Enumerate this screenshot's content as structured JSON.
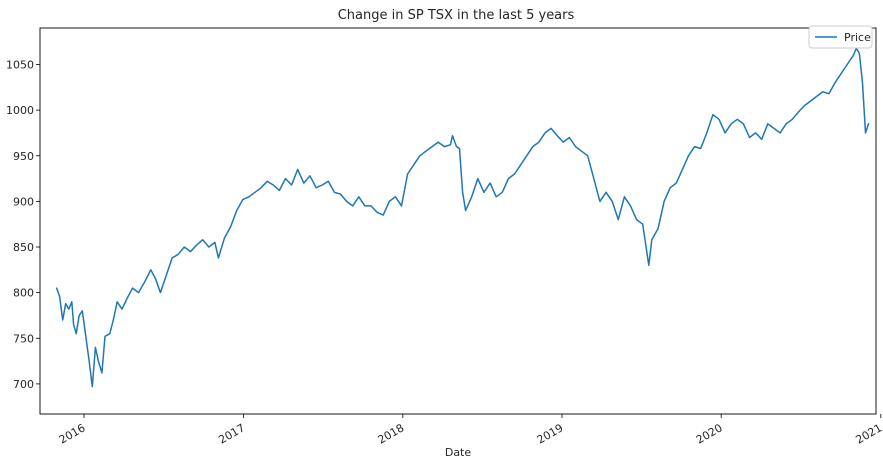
{
  "chart_data": {
    "type": "line",
    "title": "Change in SP TSX in the last 5 years",
    "xlabel": "Date",
    "ylabel": "",
    "ylim": [
      667,
      1090
    ],
    "xlim": [
      "2015-09-22",
      "2020-12-21"
    ],
    "grid": false,
    "legend_position": "top-right",
    "yticks": [
      700,
      750,
      800,
      850,
      900,
      950,
      1000,
      1050
    ],
    "xticks": [
      {
        "date": "2016-01-01",
        "label": "2016"
      },
      {
        "date": "2017-01-01",
        "label": "2017"
      },
      {
        "date": "2018-01-01",
        "label": "2018"
      },
      {
        "date": "2019-01-01",
        "label": "2019"
      },
      {
        "date": "2020-01-01",
        "label": "2020"
      },
      {
        "date": "2021-01-01",
        "label": "2021"
      }
    ],
    "series": [
      {
        "name": "Price",
        "color": "#1f77b4",
        "points": [
          [
            "2015-10-30",
            805
          ],
          [
            "2015-11-06",
            796
          ],
          [
            "2015-11-13",
            770
          ],
          [
            "2015-11-20",
            788
          ],
          [
            "2015-11-27",
            782
          ],
          [
            "2015-12-04",
            790
          ],
          [
            "2015-12-08",
            765
          ],
          [
            "2015-12-14",
            755
          ],
          [
            "2015-12-21",
            775
          ],
          [
            "2015-12-28",
            780
          ],
          [
            "2016-01-05",
            752
          ],
          [
            "2016-01-12",
            728
          ],
          [
            "2016-01-20",
            697
          ],
          [
            "2016-01-27",
            740
          ],
          [
            "2016-02-03",
            725
          ],
          [
            "2016-02-11",
            712
          ],
          [
            "2016-02-18",
            752
          ],
          [
            "2016-02-29",
            755
          ],
          [
            "2016-03-08",
            770
          ],
          [
            "2016-03-17",
            790
          ],
          [
            "2016-03-28",
            782
          ],
          [
            "2016-04-07",
            792
          ],
          [
            "2016-04-21",
            805
          ],
          [
            "2016-05-05",
            800
          ],
          [
            "2016-05-19",
            812
          ],
          [
            "2016-06-02",
            825
          ],
          [
            "2016-06-13",
            815
          ],
          [
            "2016-06-24",
            800
          ],
          [
            "2016-07-07",
            818
          ],
          [
            "2016-07-21",
            838
          ],
          [
            "2016-08-04",
            842
          ],
          [
            "2016-08-18",
            850
          ],
          [
            "2016-09-01",
            845
          ],
          [
            "2016-09-15",
            852
          ],
          [
            "2016-09-29",
            858
          ],
          [
            "2016-10-13",
            850
          ],
          [
            "2016-10-27",
            855
          ],
          [
            "2016-11-04",
            838
          ],
          [
            "2016-11-18",
            860
          ],
          [
            "2016-12-02",
            872
          ],
          [
            "2016-12-16",
            890
          ],
          [
            "2016-12-30",
            902
          ],
          [
            "2017-01-13",
            905
          ],
          [
            "2017-01-27",
            910
          ],
          [
            "2017-02-10",
            915
          ],
          [
            "2017-02-24",
            922
          ],
          [
            "2017-03-10",
            918
          ],
          [
            "2017-03-24",
            912
          ],
          [
            "2017-04-07",
            925
          ],
          [
            "2017-04-21",
            918
          ],
          [
            "2017-05-05",
            935
          ],
          [
            "2017-05-19",
            920
          ],
          [
            "2017-06-02",
            928
          ],
          [
            "2017-06-16",
            915
          ],
          [
            "2017-06-30",
            918
          ],
          [
            "2017-07-14",
            922
          ],
          [
            "2017-07-28",
            910
          ],
          [
            "2017-08-11",
            908
          ],
          [
            "2017-08-25",
            900
          ],
          [
            "2017-09-08",
            895
          ],
          [
            "2017-09-22",
            905
          ],
          [
            "2017-10-06",
            895
          ],
          [
            "2017-10-20",
            895
          ],
          [
            "2017-11-03",
            888
          ],
          [
            "2017-11-17",
            885
          ],
          [
            "2017-12-01",
            900
          ],
          [
            "2017-12-15",
            905
          ],
          [
            "2017-12-29",
            895
          ],
          [
            "2018-01-12",
            930
          ],
          [
            "2018-01-26",
            940
          ],
          [
            "2018-02-09",
            950
          ],
          [
            "2018-02-23",
            955
          ],
          [
            "2018-03-09",
            960
          ],
          [
            "2018-03-23",
            965
          ],
          [
            "2018-04-06",
            960
          ],
          [
            "2018-04-20",
            962
          ],
          [
            "2018-04-25",
            972
          ],
          [
            "2018-05-04",
            960
          ],
          [
            "2018-05-11",
            958
          ],
          [
            "2018-05-18",
            910
          ],
          [
            "2018-05-25",
            890
          ],
          [
            "2018-06-08",
            905
          ],
          [
            "2018-06-22",
            925
          ],
          [
            "2018-07-06",
            910
          ],
          [
            "2018-07-20",
            920
          ],
          [
            "2018-08-03",
            905
          ],
          [
            "2018-08-17",
            910
          ],
          [
            "2018-08-31",
            925
          ],
          [
            "2018-09-14",
            930
          ],
          [
            "2018-09-28",
            940
          ],
          [
            "2018-10-12",
            950
          ],
          [
            "2018-10-26",
            960
          ],
          [
            "2018-11-09",
            965
          ],
          [
            "2018-11-23",
            975
          ],
          [
            "2018-12-07",
            980
          ],
          [
            "2018-12-21",
            972
          ],
          [
            "2019-01-04",
            965
          ],
          [
            "2019-01-18",
            970
          ],
          [
            "2019-02-01",
            960
          ],
          [
            "2019-02-15",
            955
          ],
          [
            "2019-03-01",
            950
          ],
          [
            "2019-03-15",
            925
          ],
          [
            "2019-03-29",
            900
          ],
          [
            "2019-04-12",
            910
          ],
          [
            "2019-04-26",
            900
          ],
          [
            "2019-05-10",
            880
          ],
          [
            "2019-05-24",
            905
          ],
          [
            "2019-06-07",
            895
          ],
          [
            "2019-06-21",
            880
          ],
          [
            "2019-07-05",
            875
          ],
          [
            "2019-07-19",
            830
          ],
          [
            "2019-07-26",
            858
          ],
          [
            "2019-08-09",
            870
          ],
          [
            "2019-08-23",
            900
          ],
          [
            "2019-09-06",
            915
          ],
          [
            "2019-09-20",
            920
          ],
          [
            "2019-10-04",
            935
          ],
          [
            "2019-10-18",
            950
          ],
          [
            "2019-11-01",
            960
          ],
          [
            "2019-11-15",
            958
          ],
          [
            "2019-11-29",
            975
          ],
          [
            "2019-12-13",
            995
          ],
          [
            "2019-12-27",
            990
          ],
          [
            "2020-01-10",
            975
          ],
          [
            "2020-01-24",
            985
          ],
          [
            "2020-02-07",
            990
          ],
          [
            "2020-02-21",
            985
          ],
          [
            "2020-03-06",
            970
          ],
          [
            "2020-03-20",
            975
          ],
          [
            "2020-04-03",
            968
          ],
          [
            "2020-04-17",
            985
          ],
          [
            "2020-05-01",
            980
          ],
          [
            "2020-05-15",
            975
          ],
          [
            "2020-05-29",
            985
          ],
          [
            "2020-06-12",
            990
          ],
          [
            "2020-06-26",
            998
          ],
          [
            "2020-07-10",
            1005
          ],
          [
            "2020-07-24",
            1010
          ],
          [
            "2020-08-07",
            1015
          ],
          [
            "2020-08-21",
            1020
          ],
          [
            "2020-09-04",
            1018
          ],
          [
            "2020-09-18",
            1030
          ],
          [
            "2020-10-02",
            1040
          ],
          [
            "2020-10-16",
            1050
          ],
          [
            "2020-10-30",
            1060
          ],
          [
            "2020-11-06",
            1068
          ],
          [
            "2020-11-13",
            1062
          ],
          [
            "2020-11-20",
            1030
          ],
          [
            "2020-11-27",
            975
          ],
          [
            "2020-12-04",
            985
          ]
        ]
      }
    ]
  }
}
